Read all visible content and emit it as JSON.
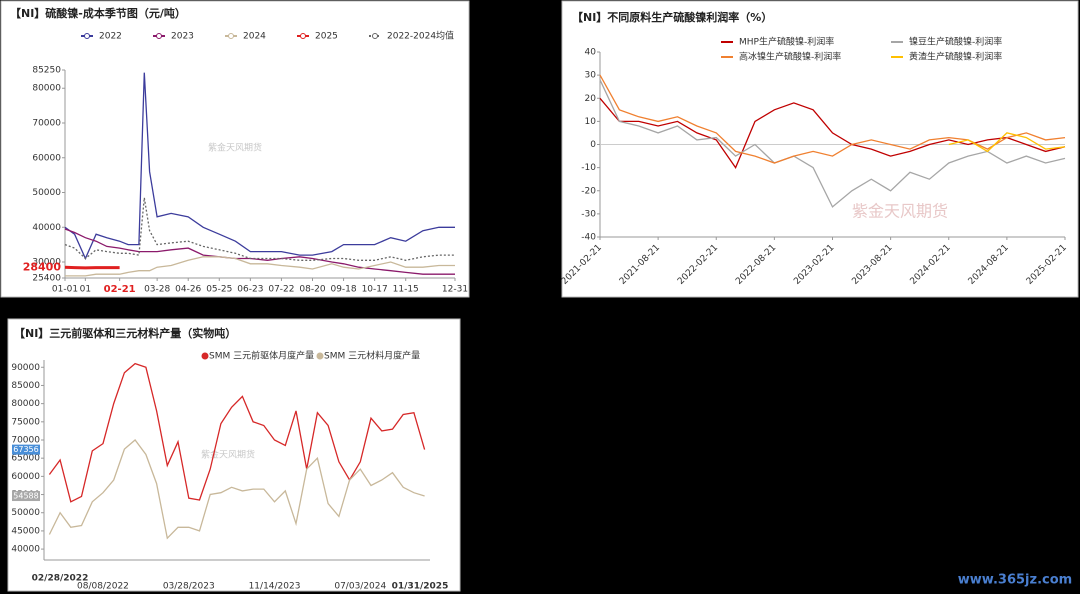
{
  "chart_data": [
    {
      "type": "line",
      "title": "【NI】硫酸镍-成本季节图（元/吨）",
      "x": [
        1,
        10,
        20,
        30,
        40,
        52,
        60,
        70,
        75,
        80,
        87,
        100,
        116,
        130,
        145,
        160,
        174,
        190,
        203,
        220,
        232,
        250,
        261,
        275,
        290,
        305,
        319,
        335,
        350,
        365
      ],
      "series": [
        {
          "name": "2022",
          "color": "#3c3c9c",
          "values": [
            40000,
            38000,
            31000,
            38000,
            37000,
            36000,
            35000,
            35000,
            84500,
            56000,
            43000,
            44000,
            43000,
            40000,
            38000,
            36000,
            33000,
            33000,
            33000,
            32000,
            32000,
            33000,
            35000,
            35000,
            35000,
            37000,
            36000,
            39000,
            40000,
            40000
          ]
        },
        {
          "name": "2023",
          "color": "#8b1a6b",
          "values": [
            39500,
            38500,
            37000,
            36000,
            34500,
            34000,
            33500,
            33000,
            33000,
            33000,
            33000,
            33500,
            34000,
            32000,
            31500,
            31000,
            31000,
            30500,
            31000,
            31500,
            31000,
            30000,
            29500,
            28500,
            28000,
            27500,
            27000,
            26500,
            26500,
            26500
          ]
        },
        {
          "name": "2024",
          "color": "#c8b89a",
          "values": [
            26000,
            26000,
            26000,
            26500,
            26500,
            26500,
            27000,
            27500,
            27500,
            27500,
            28500,
            29000,
            30500,
            31500,
            31500,
            31000,
            29500,
            29500,
            29000,
            28500,
            28000,
            29500,
            28500,
            28000,
            29000,
            30000,
            28500,
            28500,
            29000,
            29000
          ]
        },
        {
          "name": "2025",
          "color": "#e02020",
          "values": [
            28500,
            28400,
            28300,
            28400,
            28400,
            28400,
            null,
            null,
            null,
            null,
            null,
            null,
            null,
            null,
            null,
            null,
            null,
            null,
            null,
            null,
            null,
            null,
            null,
            null,
            null,
            null,
            null,
            null,
            null,
            null
          ]
        },
        {
          "name": "2022-2024均值",
          "color": "#666666",
          "dashed": true,
          "values": [
            35000,
            34000,
            31000,
            33500,
            33000,
            32500,
            32500,
            32000,
            48500,
            39000,
            35000,
            35500,
            36000,
            34500,
            33500,
            32500,
            31000,
            31000,
            31000,
            30500,
            30500,
            31000,
            31000,
            30500,
            30500,
            31500,
            30500,
            31500,
            32000,
            32000
          ]
        }
      ],
      "xlim": [
        1,
        365
      ],
      "xticks": [
        {
          "value": 1,
          "label": "01-01"
        },
        {
          "value": 20,
          "label": "01"
        },
        {
          "value": 52,
          "label": "02-21",
          "color": "#e02020"
        },
        {
          "value": 87,
          "label": "03-28"
        },
        {
          "value": 116,
          "label": "04-26"
        },
        {
          "value": 145,
          "label": "05-25"
        },
        {
          "value": 174,
          "label": "06-23"
        },
        {
          "value": 203,
          "label": "07-22"
        },
        {
          "value": 232,
          "label": "08-20"
        },
        {
          "value": 261,
          "label": "09-18"
        },
        {
          "value": 290,
          "label": "10-17"
        },
        {
          "value": 319,
          "label": "11-15"
        },
        {
          "value": 365,
          "label": "12-31"
        }
      ],
      "ylim": [
        25400,
        85250
      ],
      "yticks": [
        25400,
        30000,
        40000,
        50000,
        60000,
        70000,
        80000,
        85250
      ],
      "annotations": [
        {
          "text": "28400",
          "value": 28400,
          "color": "#e02020"
        }
      ],
      "watermark": "紫金天风期货"
    },
    {
      "type": "line",
      "title": "【NI】不同原料生产硫酸镍利润率（%）",
      "x": [
        0,
        2,
        4,
        6,
        8,
        10,
        12,
        14,
        16,
        18,
        20,
        22,
        24,
        26,
        28,
        30,
        32,
        34,
        36,
        38,
        40,
        42,
        44,
        46,
        48
      ],
      "series": [
        {
          "name": "MHP生产硫酸镍-利润率",
          "color": "#c00000",
          "values": [
            20,
            10,
            10,
            8,
            10,
            5,
            2,
            -10,
            10,
            15,
            18,
            15,
            5,
            0,
            -2,
            -5,
            -3,
            0,
            2,
            0,
            2,
            3,
            0,
            -3,
            -1
          ]
        },
        {
          "name": "镍豆生产硫酸镍-利润率",
          "color": "#a6a6a6",
          "values": [
            28,
            10,
            8,
            5,
            8,
            2,
            3,
            -5,
            0,
            -8,
            -5,
            -10,
            -27,
            -20,
            -15,
            -20,
            -12,
            -15,
            -8,
            -5,
            -3,
            -8,
            -5,
            -8,
            -6
          ]
        },
        {
          "name": "高冰镍生产硫酸镍-利润率",
          "color": "#f08030",
          "values": [
            30,
            15,
            12,
            10,
            12,
            8,
            5,
            -3,
            -5,
            -8,
            -5,
            -3,
            -5,
            0,
            2,
            0,
            -2,
            2,
            3,
            2,
            -2,
            3,
            5,
            2,
            3
          ]
        },
        {
          "name": "黄渣生产硫酸镍-利润率",
          "color": "#ffc000",
          "values": [
            null,
            null,
            null,
            null,
            null,
            null,
            null,
            null,
            null,
            null,
            null,
            null,
            null,
            null,
            null,
            null,
            null,
            null,
            0,
            2,
            -3,
            5,
            3,
            -2,
            -1
          ]
        }
      ],
      "xlim": [
        0,
        48
      ],
      "xticks": [
        {
          "value": 0,
          "label": "2021-02-21"
        },
        {
          "value": 6,
          "label": "2021-08-21"
        },
        {
          "value": 12,
          "label": "2022-02-21"
        },
        {
          "value": 18,
          "label": "2022-08-21"
        },
        {
          "value": 24,
          "label": "2023-02-21"
        },
        {
          "value": 30,
          "label": "2023-08-21"
        },
        {
          "value": 36,
          "label": "2024-02-21"
        },
        {
          "value": 42,
          "label": "2024-08-21"
        },
        {
          "value": 48,
          "label": "2025-02-21"
        }
      ],
      "ylim": [
        -40,
        40
      ],
      "yticks": [
        -40,
        -30,
        -20,
        -10,
        0,
        10,
        20,
        30,
        40
      ],
      "watermark": "紫金天风期货"
    },
    {
      "type": "line",
      "title": "【NI】三元前驱体和三元材料产量（实物吨）",
      "categories": [
        "02/28/2022",
        null,
        null,
        null,
        null,
        "08/08/2022",
        null,
        null,
        null,
        null,
        null,
        null,
        null,
        "03/28/2023",
        null,
        null,
        null,
        null,
        null,
        null,
        null,
        "11/14/2023",
        null,
        null,
        null,
        null,
        null,
        null,
        null,
        "07/03/2024",
        null,
        null,
        null,
        null,
        null,
        "01/31/2025"
      ],
      "series": [
        {
          "name": "SMM 三元前驱体月度产量",
          "color": "#d62828",
          "values": [
            60500,
            64500,
            53000,
            54500,
            67000,
            69000,
            80000,
            88500,
            91000,
            90000,
            78000,
            63000,
            69500,
            54000,
            53500,
            62000,
            74500,
            79000,
            82000,
            75000,
            74000,
            70000,
            68500,
            78000,
            62000,
            77500,
            74000,
            64000,
            59000,
            64000,
            76000,
            72500,
            73000,
            77000,
            77500,
            67356
          ]
        },
        {
          "name": "SMM 三元材料月度产量",
          "color": "#c8b89a",
          "values": [
            44000,
            50000,
            46000,
            46500,
            53000,
            55500,
            59000,
            67500,
            70000,
            66000,
            58000,
            43000,
            46000,
            46000,
            45000,
            55000,
            55500,
            57000,
            56000,
            56500,
            56500,
            53000,
            56000,
            47000,
            62000,
            65000,
            52500,
            49000,
            59000,
            62000,
            57500,
            59000,
            61000,
            57000,
            55500,
            54588
          ]
        }
      ],
      "ylim": [
        37000,
        92000
      ],
      "yticks": [
        40000,
        45000,
        50000,
        55000,
        60000,
        65000,
        70000,
        75000,
        80000,
        85000,
        90000
      ],
      "annotations": [
        {
          "text": "67356",
          "value": 67356,
          "color": "#4a8fd8"
        },
        {
          "text": "54588",
          "value": 54588,
          "color": "#a8a8a8"
        }
      ],
      "watermark": "紫金天风期货"
    }
  ],
  "site_watermark": "www.365jz.com"
}
